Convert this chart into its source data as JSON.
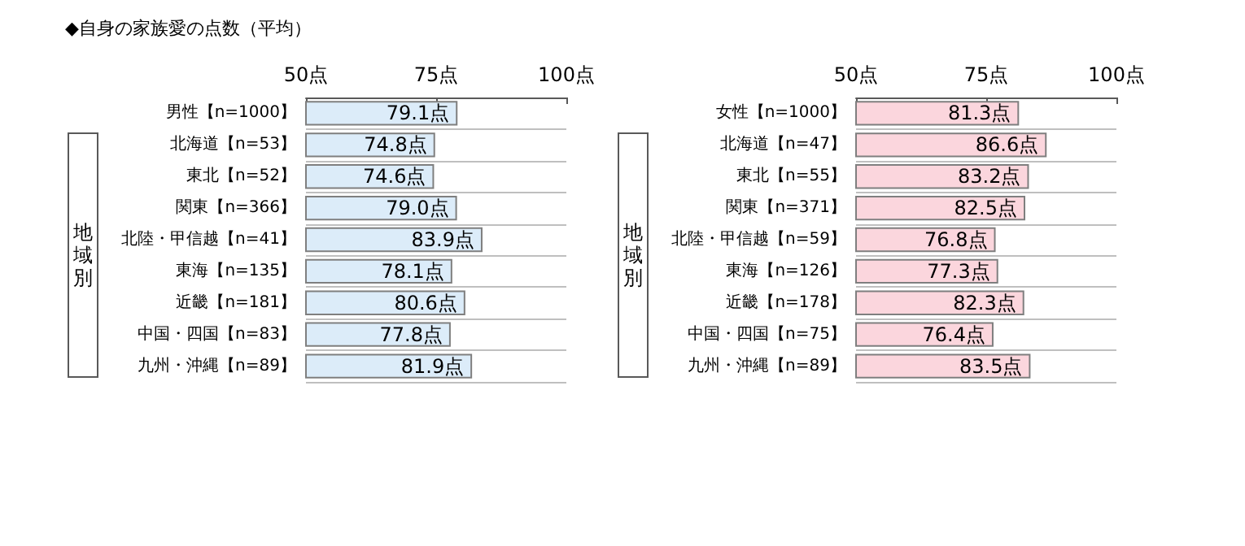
{
  "chart_data": [
    {
      "type": "bar",
      "orientation": "horizontal",
      "title": "◆自身の家族愛の点数（平均）",
      "categories": [
        "男性【n=1000】",
        "北海道【n=53】",
        "東北【n=52】",
        "関東【n=366】",
        "北陸・甲信越【n=41】",
        "東海【n=135】",
        "近畿【n=181】",
        "中国・四国【n=83】",
        "九州・沖縄【n=89】"
      ],
      "values": [
        79.1,
        74.8,
        74.6,
        79.0,
        83.9,
        78.1,
        80.6,
        77.8,
        81.9
      ],
      "value_labels": [
        "79.1点",
        "74.8点",
        "74.6点",
        "79.0点",
        "83.9点",
        "78.1点",
        "80.6点",
        "77.8点",
        "81.9点"
      ],
      "color": "#dcecf9",
      "xlim": [
        50,
        100
      ],
      "xticks": [
        {
          "value": 50,
          "label": "50点"
        },
        {
          "value": 75,
          "label": "75点"
        },
        {
          "value": 100,
          "label": "100点"
        }
      ],
      "grid": "y",
      "annotations": [
        "地域別"
      ]
    },
    {
      "type": "bar",
      "orientation": "horizontal",
      "categories": [
        "女性【n=1000】",
        "北海道【n=47】",
        "東北【n=55】",
        "関東【n=371】",
        "北陸・甲信越【n=59】",
        "東海【n=126】",
        "近畿【n=178】",
        "中国・四国【n=75】",
        "九州・沖縄【n=89】"
      ],
      "values": [
        81.3,
        86.6,
        83.2,
        82.5,
        76.8,
        77.3,
        82.3,
        76.4,
        83.5
      ],
      "value_labels": [
        "81.3点",
        "86.6点",
        "83.2点",
        "82.5点",
        "76.8点",
        "77.3点",
        "82.3点",
        "76.4点",
        "83.5点"
      ],
      "color": "#fbd6dd",
      "xlim": [
        50,
        100
      ],
      "xticks": [
        {
          "value": 50,
          "label": "50点"
        },
        {
          "value": 75,
          "label": "75点"
        },
        {
          "value": 100,
          "label": "100点"
        }
      ],
      "grid": "y",
      "annotations": [
        "地域別"
      ]
    }
  ]
}
